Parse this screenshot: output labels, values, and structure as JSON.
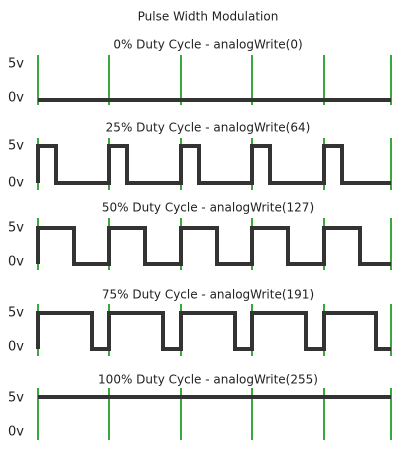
{
  "title": "Pulse Width Modulation",
  "panels": [
    {
      "label": "0% Duty Cycle - analogWrite(0)",
      "high": "5v",
      "low": "0v"
    },
    {
      "label": "25% Duty Cycle - analogWrite(64)",
      "high": "5v",
      "low": "0v"
    },
    {
      "label": "50% Duty Cycle - analogWrite(127)",
      "high": "5v",
      "low": "0v"
    },
    {
      "label": "75% Duty Cycle - analogWrite(191)",
      "high": "5v",
      "low": "0v"
    },
    {
      "label": "100% Duty Cycle - analogWrite(255)",
      "high": "5v",
      "low": "0v"
    }
  ]
}
